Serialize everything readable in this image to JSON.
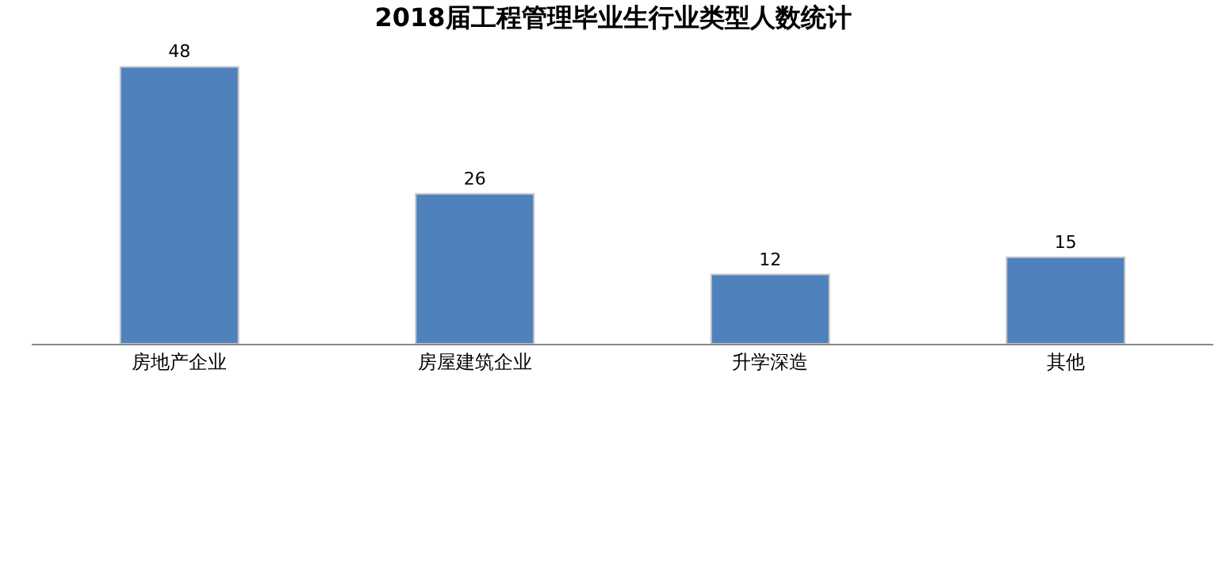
{
  "chart_data": {
    "type": "bar",
    "title": "2018届工程管理毕业生行业类型人数统计",
    "categories": [
      "房地产企业",
      "房屋建筑企业",
      "升学深造",
      "其他"
    ],
    "values": [
      48,
      26,
      12,
      15
    ],
    "color": "#4f81bd",
    "data_labels": true,
    "grid": false,
    "legend": false
  }
}
